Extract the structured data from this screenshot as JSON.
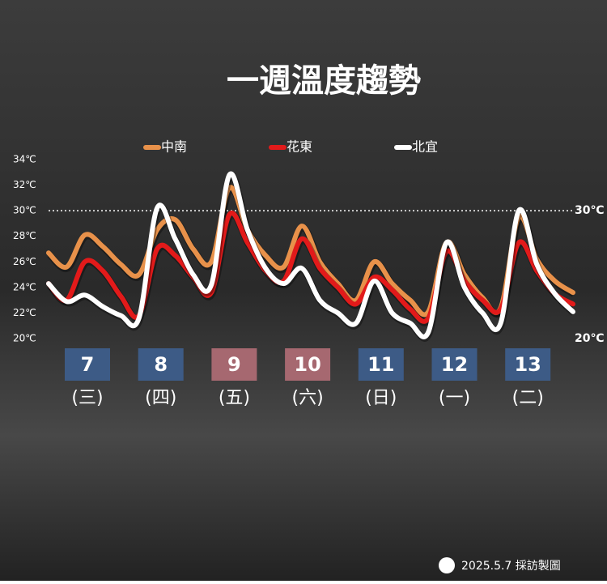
{
  "chart_data": {
    "type": "line",
    "title": "一週溫度趨勢",
    "ylim": [
      20,
      34
    ],
    "yticks": [
      {
        "value": 20,
        "label": "20℃"
      },
      {
        "value": 22,
        "label": "22℃"
      },
      {
        "value": 24,
        "label": "24℃"
      },
      {
        "value": 26,
        "label": "26℃"
      },
      {
        "value": 28,
        "label": "28℃"
      },
      {
        "value": 30,
        "label": "30℃"
      },
      {
        "value": 32,
        "label": "32℃"
      },
      {
        "value": 34,
        "label": "34℃"
      }
    ],
    "reference_lines": [
      {
        "value": 30,
        "label": "30℃",
        "dotted": true
      },
      {
        "value": 20,
        "label": "20℃",
        "dotted": false
      }
    ],
    "days": [
      {
        "date": "7",
        "weekday": "(三)",
        "color": "#3d5b86"
      },
      {
        "date": "8",
        "weekday": "(四)",
        "color": "#3d5b86"
      },
      {
        "date": "9",
        "weekday": "(五)",
        "color": "#a66870"
      },
      {
        "date": "10",
        "weekday": "(六)",
        "color": "#a66870"
      },
      {
        "date": "11",
        "weekday": "(日)",
        "color": "#3d5b86"
      },
      {
        "date": "12",
        "weekday": "(一)",
        "color": "#3d5b86"
      },
      {
        "date": "13",
        "weekday": "(二)",
        "color": "#3d5b86"
      }
    ],
    "series": [
      {
        "name": "中南",
        "color": "#e8914a",
        "values": [
          26.7,
          25.6,
          28.1,
          27.2,
          25.8,
          25,
          28.5,
          29.3,
          27,
          26,
          31.8,
          28.5,
          26.5,
          25.6,
          28.8,
          26,
          24.3,
          23,
          26,
          24.3,
          23,
          22.1,
          27.5,
          25,
          23.2,
          22.4,
          29.5,
          26.2,
          24.5,
          23.6
        ]
      },
      {
        "name": "花東",
        "color": "#e21a1a",
        "values": [
          24.3,
          23,
          26,
          25.3,
          23.3,
          21.8,
          27,
          26.5,
          24.8,
          23.6,
          29.7,
          27.5,
          25.3,
          24.5,
          27.8,
          25.5,
          24,
          22.7,
          24.8,
          23.8,
          22.3,
          21.6,
          26.8,
          24.5,
          23,
          22.3,
          27.5,
          25.3,
          23.5,
          22.7
        ]
      },
      {
        "name": "北宜",
        "color": "#ffffff",
        "values": [
          24.3,
          22.9,
          23.4,
          22.5,
          21.8,
          21.6,
          30.2,
          27.8,
          25,
          24.2,
          32.8,
          28.5,
          25.5,
          24.3,
          25.5,
          23,
          22,
          21.2,
          24.5,
          22,
          21.2,
          20.5,
          27.5,
          24,
          22,
          21.2,
          30,
          25.8,
          23.5,
          22.1
        ]
      }
    ],
    "footer": "2025.5.7 採訪製圖"
  }
}
